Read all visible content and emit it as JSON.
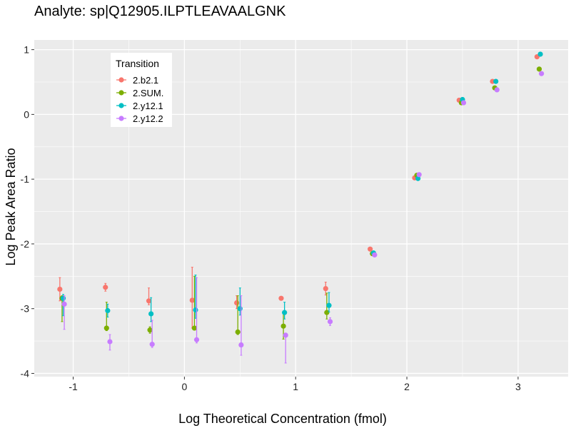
{
  "chart_data": {
    "type": "scatter",
    "title": "Analyte: sp|Q12905.ILPTLEAVAALGNK",
    "xlabel": "Log Theoretical Concentration (fmol)",
    "ylabel": "Log Peak Area Ratio",
    "xlim": [
      -1.35,
      3.45
    ],
    "ylim": [
      -4.05,
      1.15
    ],
    "x_ticks": [
      -1,
      0,
      1,
      2,
      3
    ],
    "y_ticks": [
      -4,
      -3,
      -2,
      -1,
      0,
      1
    ],
    "x_tick_labels": [
      "-1",
      "0",
      "1",
      "2",
      "3"
    ],
    "y_tick_labels": [
      "-4",
      "-3",
      "-2",
      "-1",
      "0",
      "1"
    ],
    "grid": true,
    "legend": {
      "title": "Transition",
      "position": "top-left"
    },
    "series": [
      {
        "name": "2.b2.1",
        "color": "#F8766D",
        "points": [
          {
            "x": -1.12,
            "y": -2.7,
            "lo": -2.88,
            "hi": -2.52
          },
          {
            "x": -0.71,
            "y": -2.67,
            "lo": -2.73,
            "hi": -2.61
          },
          {
            "x": -0.32,
            "y": -2.88,
            "lo": -2.94,
            "hi": -2.68
          },
          {
            "x": 0.07,
            "y": -2.87,
            "lo": -3.3,
            "hi": -2.36
          },
          {
            "x": 0.47,
            "y": -2.91,
            "lo": -3.0,
            "hi": -2.8
          },
          {
            "x": 0.87,
            "y": -2.84,
            "lo": -2.86,
            "hi": -2.82
          },
          {
            "x": 1.27,
            "y": -2.69,
            "lo": -2.79,
            "hi": -2.59
          },
          {
            "x": 1.67,
            "y": -2.08,
            "lo": -2.1,
            "hi": -2.06
          },
          {
            "x": 2.07,
            "y": -0.98,
            "lo": -1.0,
            "hi": -0.96
          },
          {
            "x": 2.47,
            "y": 0.22,
            "lo": 0.2,
            "hi": 0.24
          },
          {
            "x": 2.77,
            "y": 0.51,
            "lo": 0.49,
            "hi": 0.53
          },
          {
            "x": 3.17,
            "y": 0.89,
            "lo": 0.87,
            "hi": 0.91
          }
        ]
      },
      {
        "name": "2.SUM.",
        "color": "#7CAE00",
        "points": [
          {
            "x": -1.1,
            "y": -2.84,
            "lo": -3.2,
            "hi": -2.8
          },
          {
            "x": -0.7,
            "y": -3.3,
            "lo": -3.34,
            "hi": -2.9
          },
          {
            "x": -0.31,
            "y": -3.33,
            "lo": -3.38,
            "hi": -3.28
          },
          {
            "x": 0.09,
            "y": -3.3,
            "lo": -3.33,
            "hi": -2.5
          },
          {
            "x": 0.48,
            "y": -3.36,
            "lo": -3.4,
            "hi": -2.8
          },
          {
            "x": 0.89,
            "y": -3.27,
            "lo": -3.47,
            "hi": -3.07
          },
          {
            "x": 1.28,
            "y": -3.06,
            "lo": -3.16,
            "hi": -2.76
          },
          {
            "x": 1.69,
            "y": -2.15,
            "lo": -2.18,
            "hi": -2.12
          },
          {
            "x": 2.09,
            "y": -0.94,
            "lo": -0.96,
            "hi": -0.92
          },
          {
            "x": 2.49,
            "y": 0.18,
            "lo": 0.16,
            "hi": 0.2
          },
          {
            "x": 2.79,
            "y": 0.41,
            "lo": 0.39,
            "hi": 0.43
          },
          {
            "x": 3.19,
            "y": 0.7,
            "lo": 0.68,
            "hi": 0.72
          }
        ]
      },
      {
        "name": "2.y12.1",
        "color": "#00BFC4",
        "points": [
          {
            "x": -1.09,
            "y": -2.84,
            "lo": -3.11,
            "hi": -2.78
          },
          {
            "x": -0.69,
            "y": -3.03,
            "lo": -3.13,
            "hi": -2.93
          },
          {
            "x": -0.3,
            "y": -3.08,
            "lo": -3.2,
            "hi": -2.83
          },
          {
            "x": 0.1,
            "y": -3.02,
            "lo": -3.15,
            "hi": -2.48
          },
          {
            "x": 0.5,
            "y": -3.0,
            "lo": -3.1,
            "hi": -2.68
          },
          {
            "x": 0.9,
            "y": -3.06,
            "lo": -3.16,
            "hi": -2.9
          },
          {
            "x": 1.3,
            "y": -2.95,
            "lo": -3.05,
            "hi": -2.75
          },
          {
            "x": 1.7,
            "y": -2.14,
            "lo": -2.16,
            "hi": -2.12
          },
          {
            "x": 2.1,
            "y": -0.99,
            "lo": -1.01,
            "hi": -0.97
          },
          {
            "x": 2.5,
            "y": 0.23,
            "lo": 0.21,
            "hi": 0.25
          },
          {
            "x": 2.8,
            "y": 0.51,
            "lo": 0.49,
            "hi": 0.53
          },
          {
            "x": 3.2,
            "y": 0.93,
            "lo": 0.91,
            "hi": 0.95
          }
        ]
      },
      {
        "name": "2.y12.2",
        "color": "#C77CFF",
        "points": [
          {
            "x": -1.08,
            "y": -2.93,
            "lo": -3.32,
            "hi": -2.8
          },
          {
            "x": -0.67,
            "y": -3.51,
            "lo": -3.64,
            "hi": -3.4
          },
          {
            "x": -0.29,
            "y": -3.55,
            "lo": -3.6,
            "hi": -3.18
          },
          {
            "x": 0.11,
            "y": -3.48,
            "lo": -3.53,
            "hi": -2.52
          },
          {
            "x": 0.51,
            "y": -3.56,
            "lo": -3.72,
            "hi": -2.8
          },
          {
            "x": 0.91,
            "y": -3.41,
            "lo": -3.84,
            "hi": -3.4
          },
          {
            "x": 1.31,
            "y": -3.2,
            "lo": -3.26,
            "hi": -3.14
          },
          {
            "x": 1.71,
            "y": -2.17,
            "lo": -2.2,
            "hi": -2.14
          },
          {
            "x": 2.11,
            "y": -0.93,
            "lo": -0.95,
            "hi": -0.91
          },
          {
            "x": 2.51,
            "y": 0.18,
            "lo": 0.16,
            "hi": 0.2
          },
          {
            "x": 2.81,
            "y": 0.38,
            "lo": 0.36,
            "hi": 0.4
          },
          {
            "x": 3.21,
            "y": 0.63,
            "lo": 0.61,
            "hi": 0.65
          }
        ]
      }
    ]
  }
}
